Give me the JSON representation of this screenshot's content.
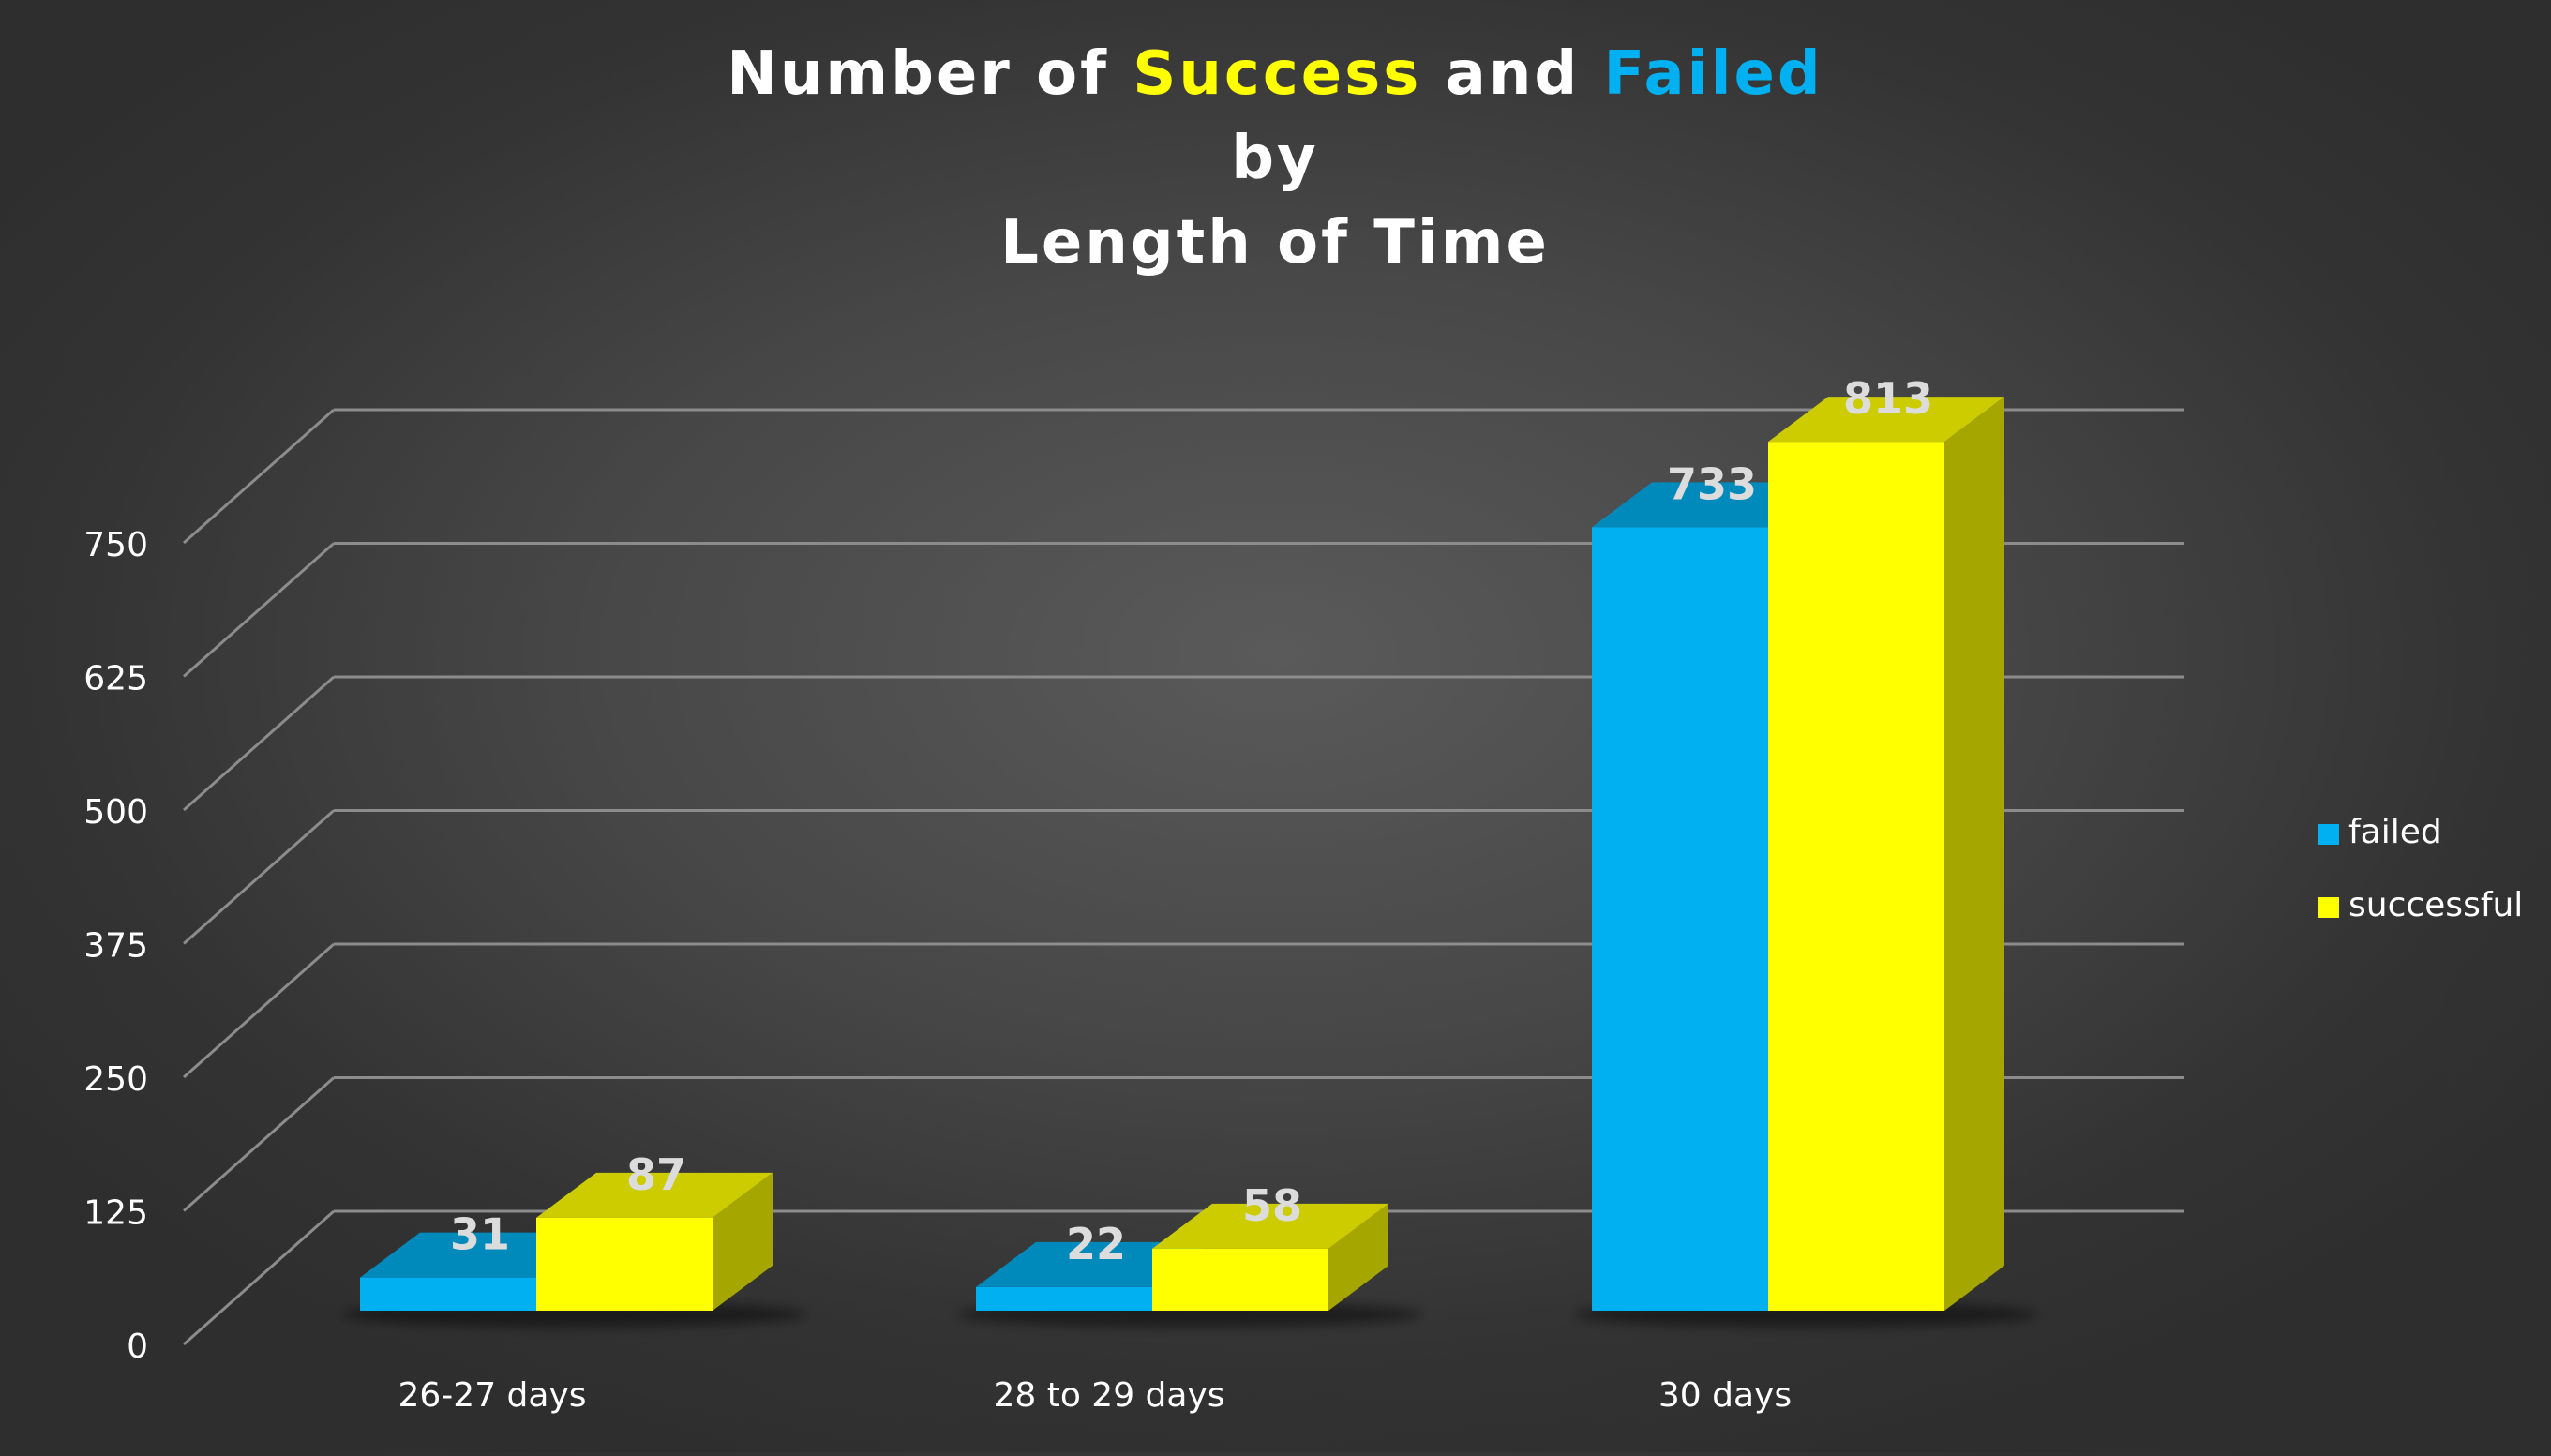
{
  "title": {
    "line1_prefix": "Number of ",
    "line1_success": "Success",
    "line1_and": " and ",
    "line1_failed": "Failed",
    "line2": "by",
    "line3": "Length of Time"
  },
  "colors": {
    "failed": "#00B0F0",
    "successful": "#FFFF00",
    "title_text": "#FFFFFF",
    "axis_text": "#FFFFFF",
    "gridline": "#8C8C8C"
  },
  "legend": {
    "placement": "right",
    "items": [
      {
        "label": "failed",
        "color": "#00B0F0"
      },
      {
        "label": "successful",
        "color": "#FFFF00"
      }
    ]
  },
  "chart_data": {
    "type": "bar",
    "style": "3d-clustered-column",
    "categories": [
      "26-27 days",
      "28 to 29 days",
      "30 days"
    ],
    "series": [
      {
        "name": "failed",
        "values": [
          31,
          22,
          733
        ]
      },
      {
        "name": "successful",
        "values": [
          87,
          58,
          813
        ]
      }
    ],
    "yticks": [
      0,
      125,
      250,
      375,
      500,
      625,
      750
    ],
    "ylim": [
      0,
      875
    ],
    "grid": true,
    "data_labels": true
  }
}
